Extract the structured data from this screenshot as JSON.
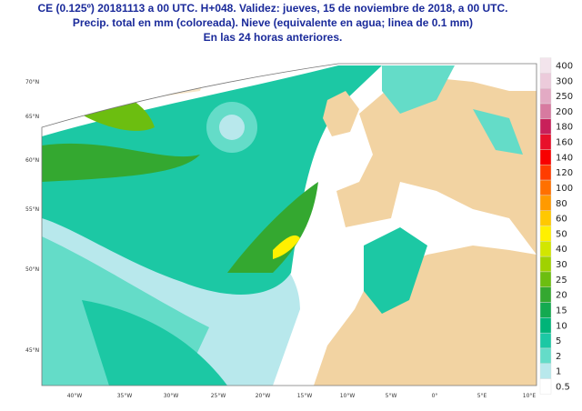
{
  "header": {
    "lines": [
      "CE (0.125º) 20181113 a 00 UTC.  H+048. Validez: jueves, 15 de noviembre de 2018,  a  00 UTC.",
      "Precip. total en mm (coloreada). Nieve (equivalente en agua; linea de 0.1 mm)",
      "En las 24 horas anteriores."
    ]
  },
  "map": {
    "lat_labels": [
      "70°N",
      "65°N",
      "60°N",
      "55°N",
      "50°N",
      "45°N"
    ],
    "lon_labels": [
      "40°W",
      "35°W",
      "30°W",
      "25°W",
      "20°W",
      "15°W",
      "10°W",
      "5°W",
      "0°",
      "5°E",
      "10°E"
    ]
  },
  "legend": {
    "items": [
      {
        "value": 400,
        "color": "#f3e4ec"
      },
      {
        "value": 300,
        "color": "#eccbdb"
      },
      {
        "value": 250,
        "color": "#e3aac4"
      },
      {
        "value": 200,
        "color": "#d77aa0"
      },
      {
        "value": 180,
        "color": "#c8205a"
      },
      {
        "value": 160,
        "color": "#e8102a"
      },
      {
        "value": 140,
        "color": "#f80000"
      },
      {
        "value": 120,
        "color": "#ff3c00"
      },
      {
        "value": 100,
        "color": "#ff7000"
      },
      {
        "value": 80,
        "color": "#ff9a00"
      },
      {
        "value": 60,
        "color": "#ffc800"
      },
      {
        "value": 50,
        "color": "#fff000"
      },
      {
        "value": 40,
        "color": "#d2e600"
      },
      {
        "value": 30,
        "color": "#a0d200"
      },
      {
        "value": 25,
        "color": "#6cbe10"
      },
      {
        "value": 20,
        "color": "#34a830"
      },
      {
        "value": 15,
        "color": "#14aa50"
      },
      {
        "value": 10,
        "color": "#00b478"
      },
      {
        "value": 5,
        "color": "#1cc8a4"
      },
      {
        "value": 2,
        "color": "#64dcc8"
      },
      {
        "value": 1,
        "color": "#b8e8ec"
      },
      {
        "value": 0.5,
        "color": "#ffffff"
      }
    ]
  }
}
